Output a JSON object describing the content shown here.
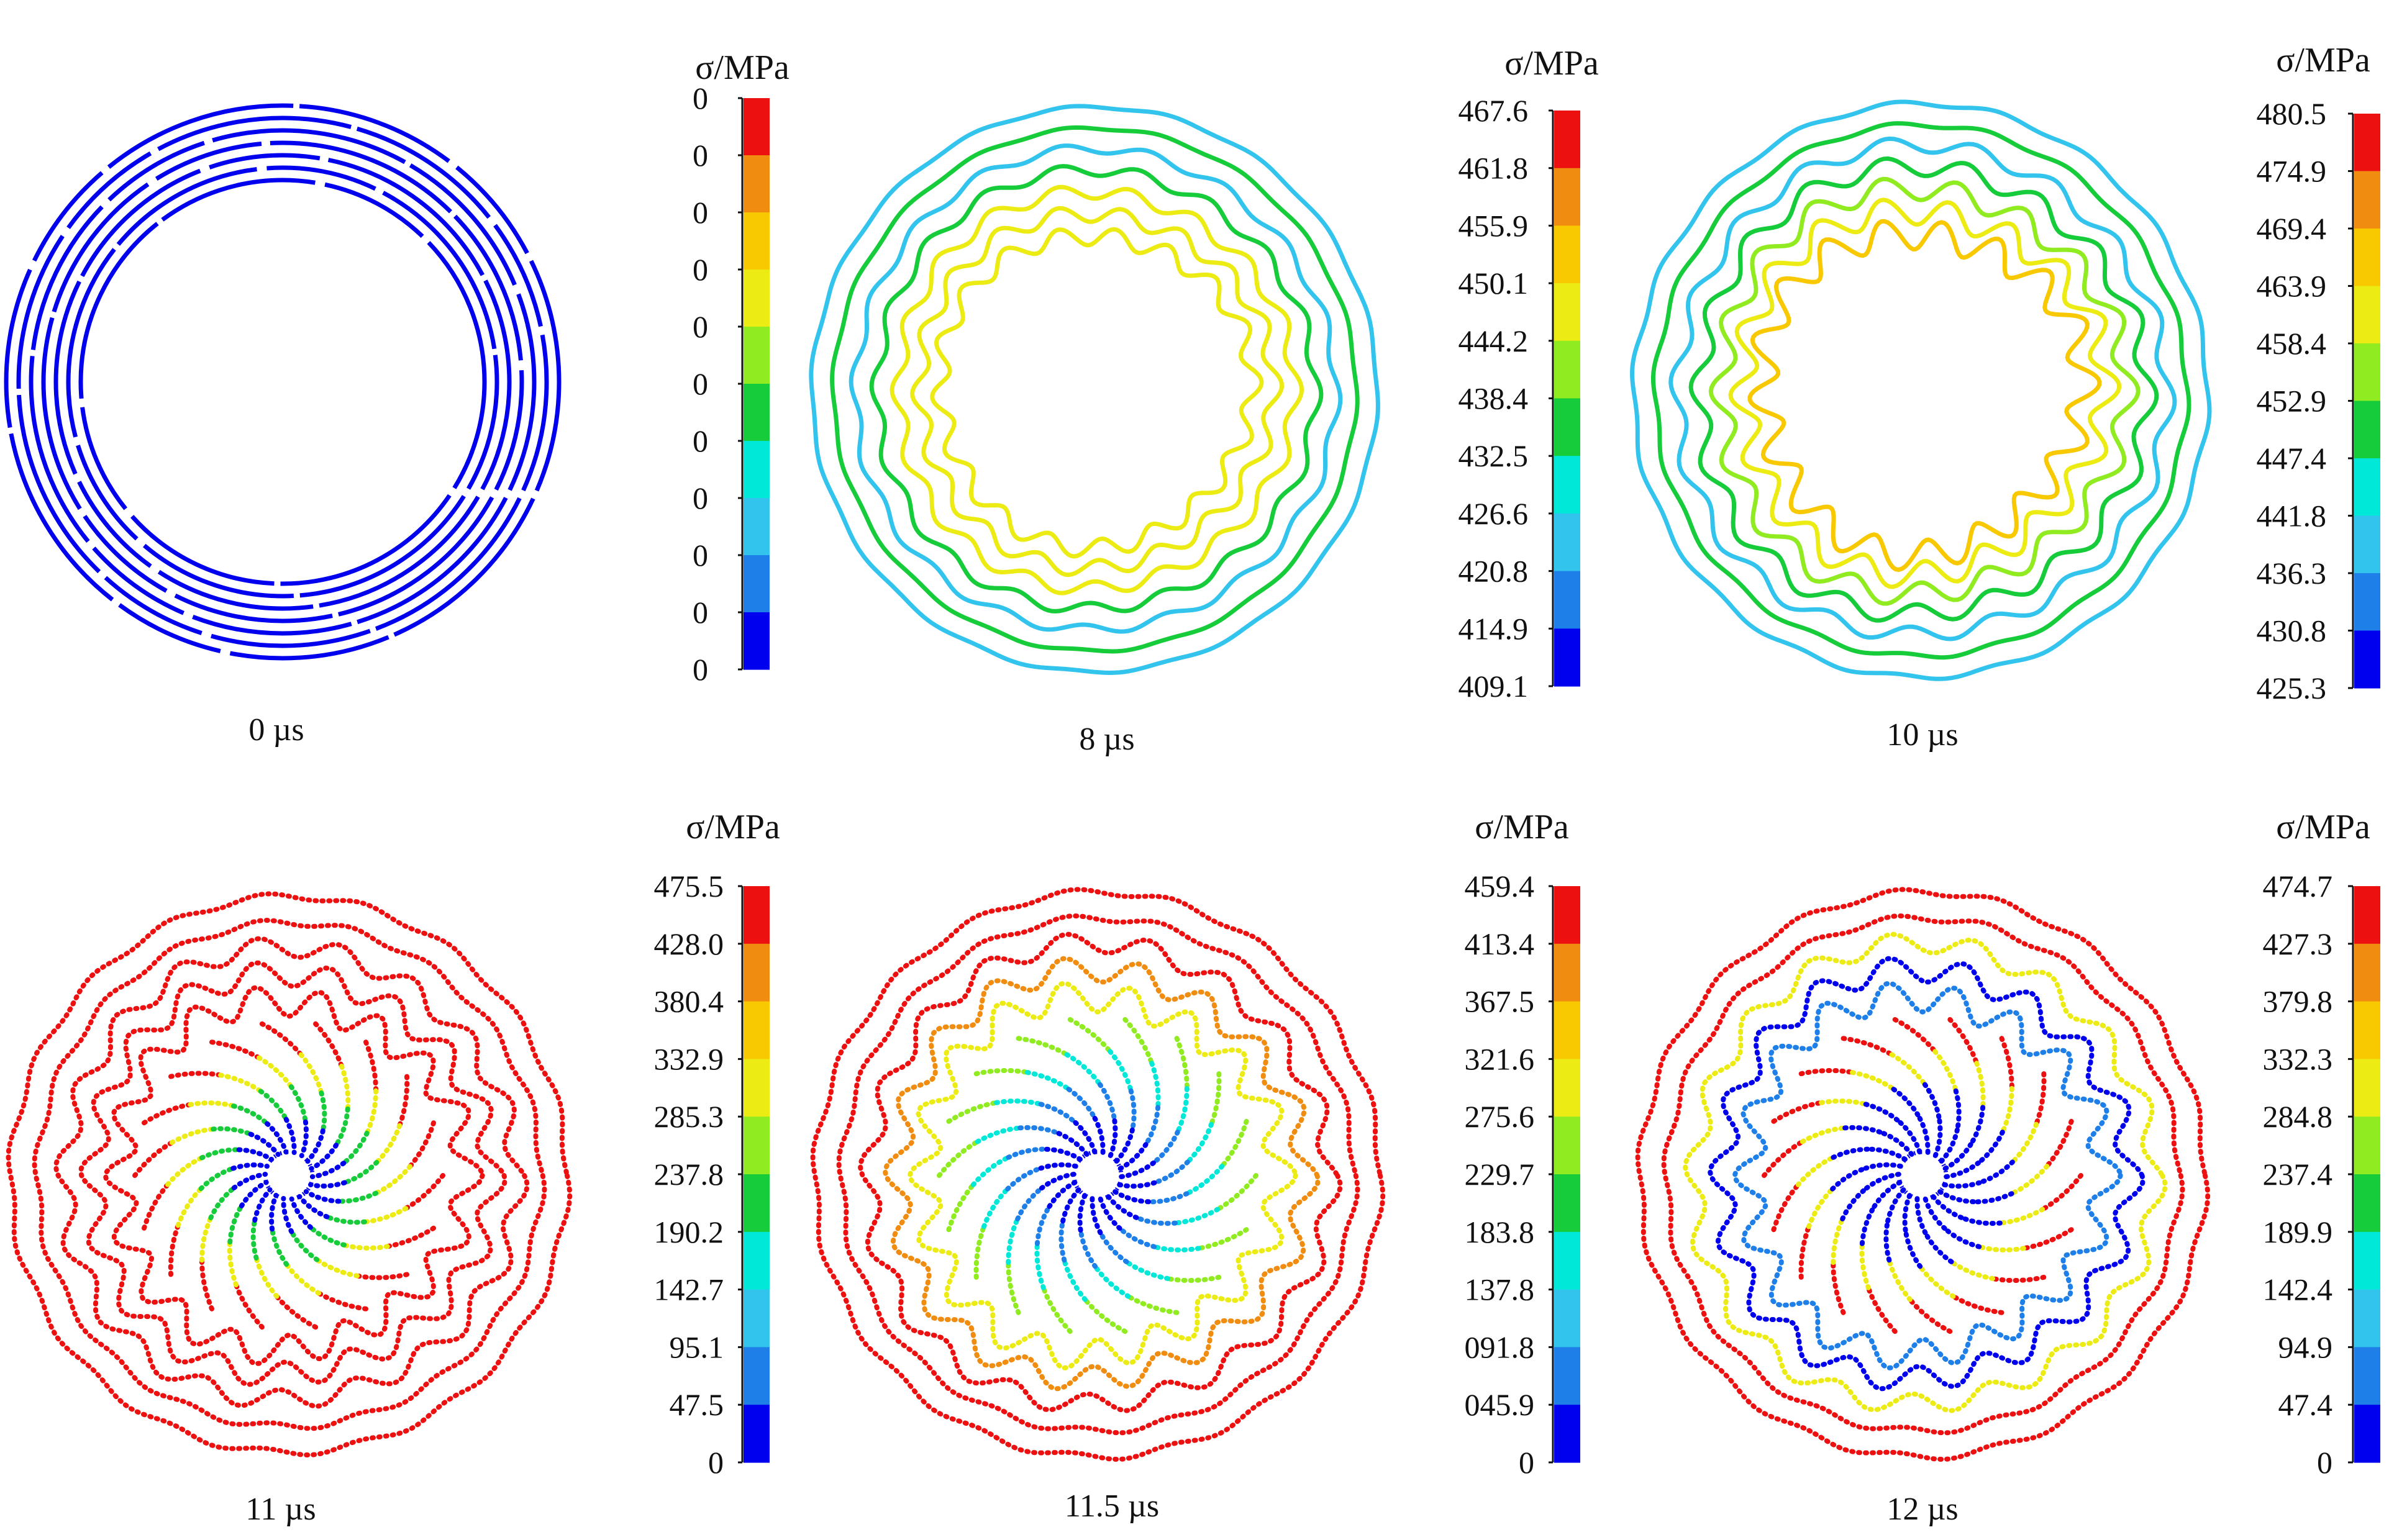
{
  "colors": {
    "scale": [
      "#0000ee",
      "#1f7fe8",
      "#33c4ee",
      "#00e8d8",
      "#16cc3a",
      "#90ec20",
      "#ecec14",
      "#f8c800",
      "#f08c10",
      "#ec1010"
    ],
    "axis": "#111111"
  },
  "panels": [
    {
      "time_label": "0 µs",
      "colorbar": {
        "unit_label": "σ/MPa",
        "ticks": [
          "0",
          "0",
          "0",
          "0",
          "0",
          "0",
          "0",
          "0",
          "0",
          "0",
          "0"
        ]
      },
      "structure": {
        "pattern": "rings",
        "ring_count": 7,
        "ring_colors": [
          "#0000ee",
          "#0000ee",
          "#0000ee",
          "#0000ee",
          "#0000ee",
          "#0000ee",
          "#0000ee"
        ],
        "waviness": 0,
        "dotted": false
      }
    },
    {
      "time_label": "8 µs",
      "colorbar": {
        "unit_label": "σ/MPa",
        "ticks": [
          "467.6",
          "461.8",
          "455.9",
          "450.1",
          "444.2",
          "438.4",
          "432.5",
          "426.6",
          "420.8",
          "414.9",
          "409.1"
        ]
      },
      "structure": {
        "pattern": "wavy-rings",
        "ring_count": 7,
        "ring_colors": [
          "#33c4ee",
          "#16cc3a",
          "#33c4ee",
          "#16cc3a",
          "#ecec14",
          "#ecec14",
          "#ecec14"
        ],
        "waviness": 0.6,
        "dotted": false
      }
    },
    {
      "time_label": "10 µs",
      "colorbar": {
        "unit_label": "σ/MPa",
        "ticks": [
          "480.5",
          "474.9",
          "469.4",
          "463.9",
          "458.4",
          "452.9",
          "447.4",
          "441.8",
          "436.3",
          "430.8",
          "425.3"
        ]
      },
      "structure": {
        "pattern": "wavy-rings",
        "ring_count": 7,
        "ring_colors": [
          "#33c4ee",
          "#16cc3a",
          "#33c4ee",
          "#16cc3a",
          "#90ec20",
          "#ecec14",
          "#f8c800"
        ],
        "waviness": 1.0,
        "dotted": false
      }
    },
    {
      "time_label": "11 µs",
      "colorbar": {
        "unit_label": "σ/MPa",
        "ticks": [
          "475.5",
          "428.0",
          "380.4",
          "332.9",
          "285.3",
          "237.8",
          "190.2",
          "142.7",
          "95.1",
          "47.5",
          "0"
        ]
      },
      "structure": {
        "pattern": "spiral",
        "ring_count": 5,
        "ring_colors": [
          "#ec1010",
          "#ec1010",
          "#ec1010",
          "#ec1010",
          "#ec1010"
        ],
        "arm_colors": [
          "#ec1010",
          "#ecec14",
          "#16cc3a",
          "#0000ee"
        ],
        "waviness": 1.3,
        "dotted": true
      }
    },
    {
      "time_label": "11.5 µs",
      "colorbar": {
        "unit_label": "σ/MPa",
        "ticks": [
          "459.4",
          "413.4",
          "367.5",
          "321.6",
          "275.6",
          "229.7",
          "183.8",
          "137.8",
          "091.8",
          "045.9",
          "0"
        ]
      },
      "structure": {
        "pattern": "spiral",
        "ring_count": 5,
        "ring_colors": [
          "#ec1010",
          "#ec1010",
          "#ec1010",
          "#f08c10",
          "#ecec14"
        ],
        "arm_colors": [
          "#90ec20",
          "#00e8d8",
          "#1f7fe8",
          "#0000ee"
        ],
        "waviness": 1.3,
        "dotted": true
      }
    },
    {
      "time_label": "12 µs",
      "colorbar": {
        "unit_label": "σ/MPa",
        "ticks": [
          "474.7",
          "427.3",
          "379.8",
          "332.3",
          "284.8",
          "237.4",
          "189.9",
          "142.4",
          "94.9",
          "47.4",
          "0"
        ]
      },
      "structure": {
        "pattern": "spiral",
        "ring_count": 5,
        "ring_colors": [
          "#ec1010",
          "#ec1010",
          "#ecec14",
          "#0000ee",
          "#1f7fe8"
        ],
        "arm_colors": [
          "#ec1010",
          "#ecec14",
          "#0000ee",
          "#0000ee"
        ],
        "waviness": 1.3,
        "dotted": true
      }
    }
  ]
}
